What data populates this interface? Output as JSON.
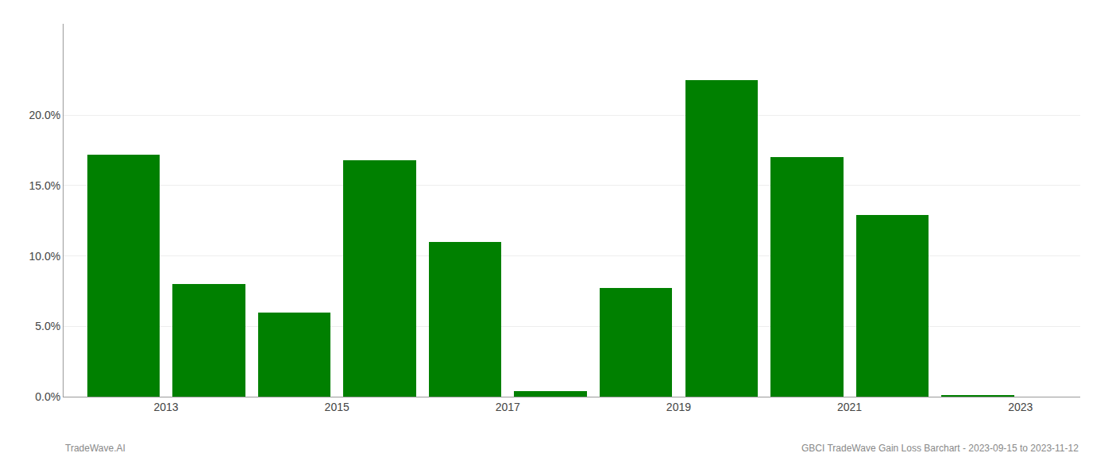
{
  "chart_data": {
    "type": "bar",
    "x": [
      2013,
      2014,
      2015,
      2016,
      2017,
      2018,
      2019,
      2020,
      2021,
      2022,
      2023
    ],
    "values": [
      0.172,
      0.08,
      0.06,
      0.168,
      0.11,
      0.004,
      0.077,
      0.225,
      0.17,
      0.129,
      0.001
    ],
    "color": "#008000",
    "xlim": [
      2012.3,
      2024.2
    ],
    "xticks": [
      {
        "value": 2013.5,
        "label": "2013"
      },
      {
        "value": 2015.5,
        "label": "2015"
      },
      {
        "value": 2017.5,
        "label": "2017"
      },
      {
        "value": 2019.5,
        "label": "2019"
      },
      {
        "value": 2021.5,
        "label": "2021"
      },
      {
        "value": 2023.5,
        "label": "2023"
      }
    ],
    "ylim": [
      0,
      0.265
    ],
    "yticks": [
      {
        "value": 0.0,
        "label": "0.0%"
      },
      {
        "value": 0.05,
        "label": "5.0%"
      },
      {
        "value": 0.1,
        "label": "10.0%"
      },
      {
        "value": 0.15,
        "label": "15.0%"
      },
      {
        "value": 0.2,
        "label": "20.0%"
      }
    ],
    "grid": true,
    "annotations": [
      "TradeWave.AI",
      "GBCI TradeWave Gain Loss Barchart - 2023-09-15 to 2023-11-12"
    ]
  }
}
